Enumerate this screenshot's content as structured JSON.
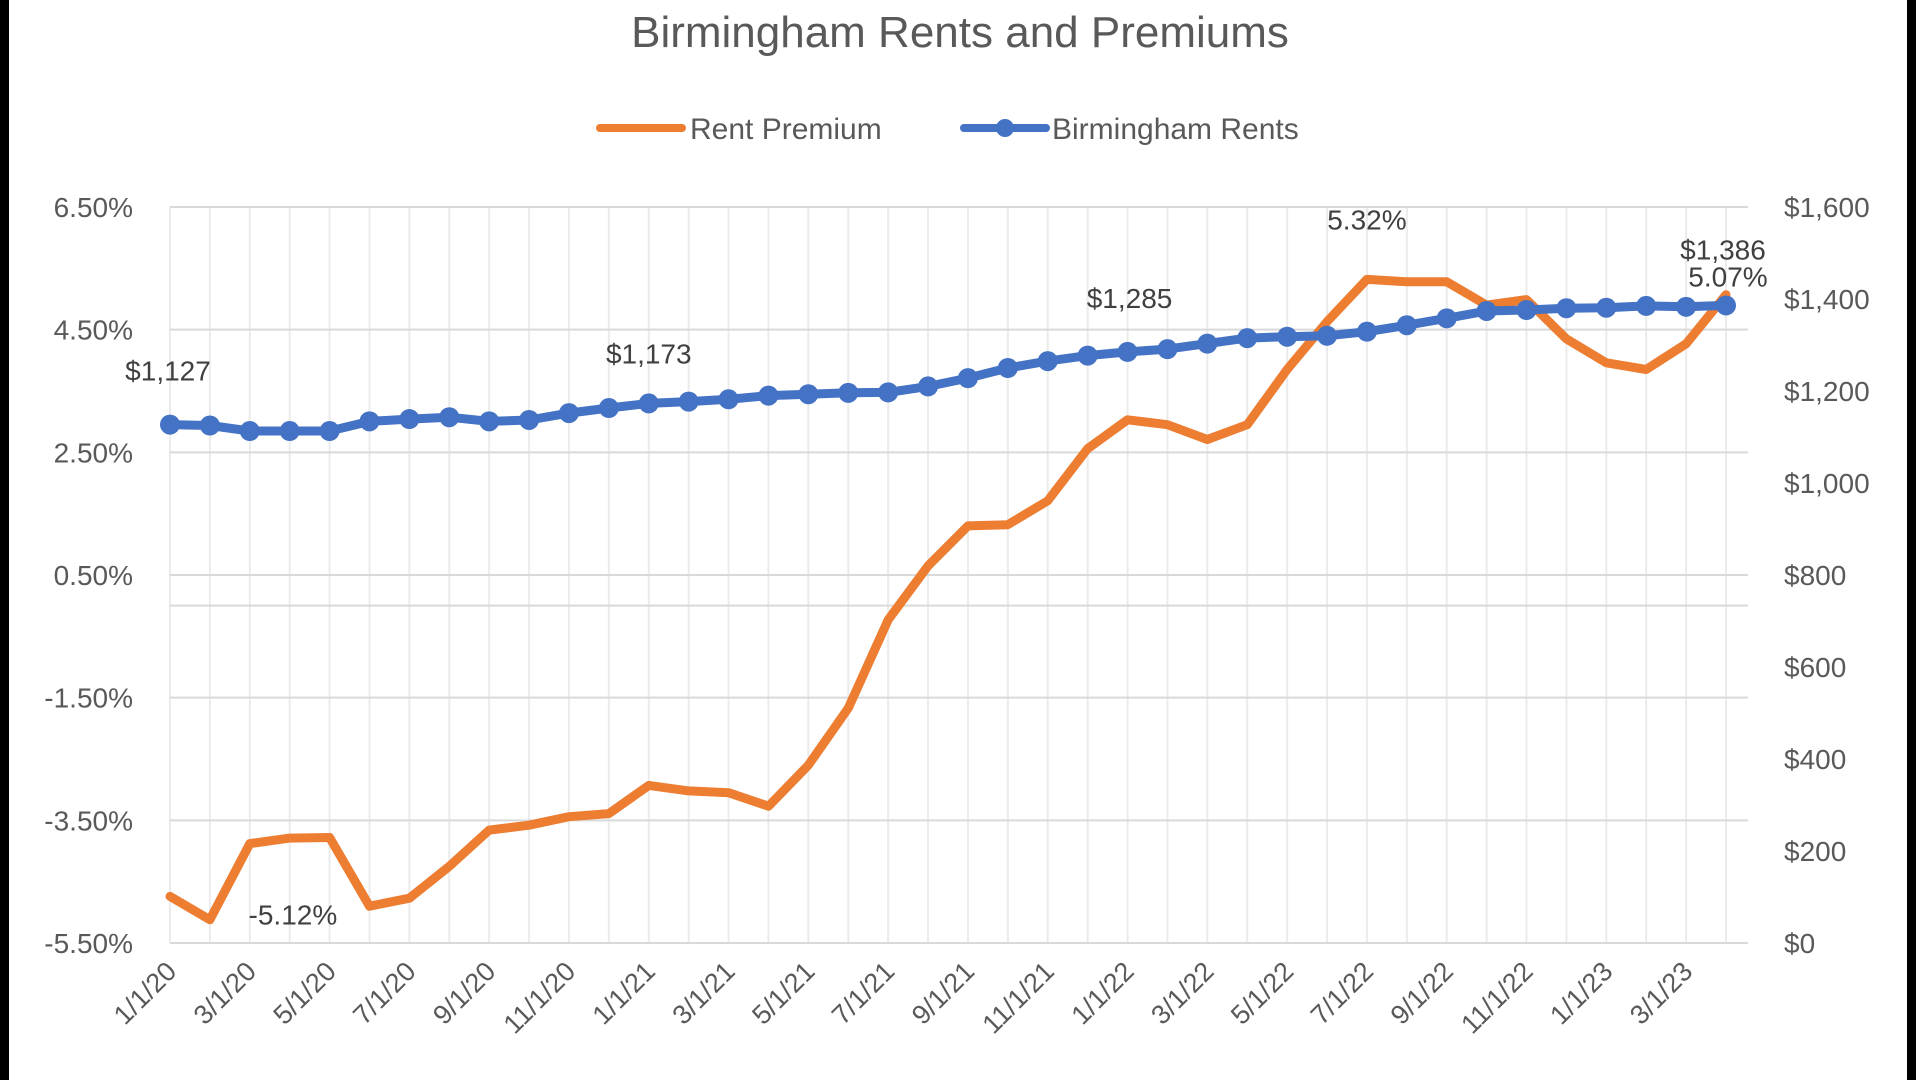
{
  "chart_data": {
    "type": "line",
    "title": "Birmingham Rents and Premiums",
    "legend_position": "top",
    "grid": true,
    "x": [
      "1/1/20",
      "2/1/20",
      "3/1/20",
      "4/1/20",
      "5/1/20",
      "6/1/20",
      "7/1/20",
      "8/1/20",
      "9/1/20",
      "10/1/20",
      "11/1/20",
      "12/1/20",
      "1/1/21",
      "2/1/21",
      "3/1/21",
      "4/1/21",
      "5/1/21",
      "6/1/21",
      "7/1/21",
      "8/1/21",
      "9/1/21",
      "10/1/21",
      "11/1/21",
      "12/1/21",
      "1/1/22",
      "2/1/22",
      "3/1/22",
      "4/1/22",
      "5/1/22",
      "6/1/22",
      "7/1/22",
      "8/1/22",
      "9/1/22",
      "10/1/22",
      "11/1/22",
      "12/1/22",
      "1/1/23",
      "2/1/23",
      "3/1/23",
      "4/1/23"
    ],
    "x_tick_labels": [
      "1/1/20",
      "3/1/20",
      "5/1/20",
      "7/1/20",
      "9/1/20",
      "11/1/20",
      "1/1/21",
      "3/1/21",
      "5/1/21",
      "7/1/21",
      "9/1/21",
      "11/1/21",
      "1/1/22",
      "3/1/22",
      "5/1/22",
      "7/1/22",
      "9/1/22",
      "11/1/22",
      "1/1/23",
      "3/1/23"
    ],
    "y_left": {
      "label": "",
      "range": [
        -5.5,
        6.5
      ],
      "ticks": [
        -5.5,
        -3.5,
        -1.5,
        0.5,
        2.5,
        4.5,
        6.5
      ],
      "tick_labels": [
        "-5.50%",
        "-3.50%",
        "-1.50%",
        "0.50%",
        "2.50%",
        "4.50%",
        "6.50%"
      ]
    },
    "y_right": {
      "label": "",
      "range": [
        0,
        1600
      ],
      "ticks": [
        0,
        200,
        400,
        600,
        800,
        1000,
        1200,
        1400,
        1600
      ],
      "tick_labels": [
        "$0",
        "$200",
        "$400",
        "$600",
        "$800",
        "$1,000",
        "$1,200",
        "$1,400",
        "$1,600"
      ]
    },
    "series": [
      {
        "name": "Rent Premium",
        "axis": "left",
        "color": "#ED7D31",
        "markers": false,
        "unit": "percent",
        "values": [
          -4.74,
          -5.12,
          -3.88,
          -3.79,
          -3.78,
          -4.9,
          -4.77,
          -4.25,
          -3.66,
          -3.58,
          -3.44,
          -3.39,
          -2.93,
          -3.02,
          -3.05,
          -3.27,
          -2.6,
          -1.67,
          -0.23,
          0.65,
          1.3,
          1.32,
          1.71,
          2.56,
          3.03,
          2.95,
          2.71,
          2.95,
          3.85,
          4.63,
          5.32,
          5.28,
          5.28,
          4.9,
          4.99,
          4.35,
          3.96,
          3.85,
          4.27,
          5.07
        ],
        "data_labels": [
          {
            "index": 1,
            "text": "-5.12%"
          },
          {
            "index": 30,
            "text": "5.32%"
          },
          {
            "index": 39,
            "text": "5.07%"
          }
        ]
      },
      {
        "name": "Birmingham Rents",
        "axis": "right",
        "color": "#4472C4",
        "markers": true,
        "unit": "USD",
        "values": [
          1127,
          1125,
          1113,
          1113,
          1113,
          1134,
          1139,
          1143,
          1134,
          1137,
          1152,
          1163,
          1173,
          1177,
          1182,
          1190,
          1193,
          1196,
          1197,
          1210,
          1228,
          1250,
          1265,
          1277,
          1285,
          1291,
          1303,
          1315,
          1318,
          1320,
          1329,
          1343,
          1358,
          1374,
          1376,
          1380,
          1381,
          1385,
          1383,
          1386
        ],
        "data_labels": [
          {
            "index": 0,
            "text": "$1,127"
          },
          {
            "index": 12,
            "text": "$1,173"
          },
          {
            "index": 24,
            "text": "$1,285"
          },
          {
            "index": 39,
            "text": "$1,386"
          }
        ]
      }
    ]
  }
}
